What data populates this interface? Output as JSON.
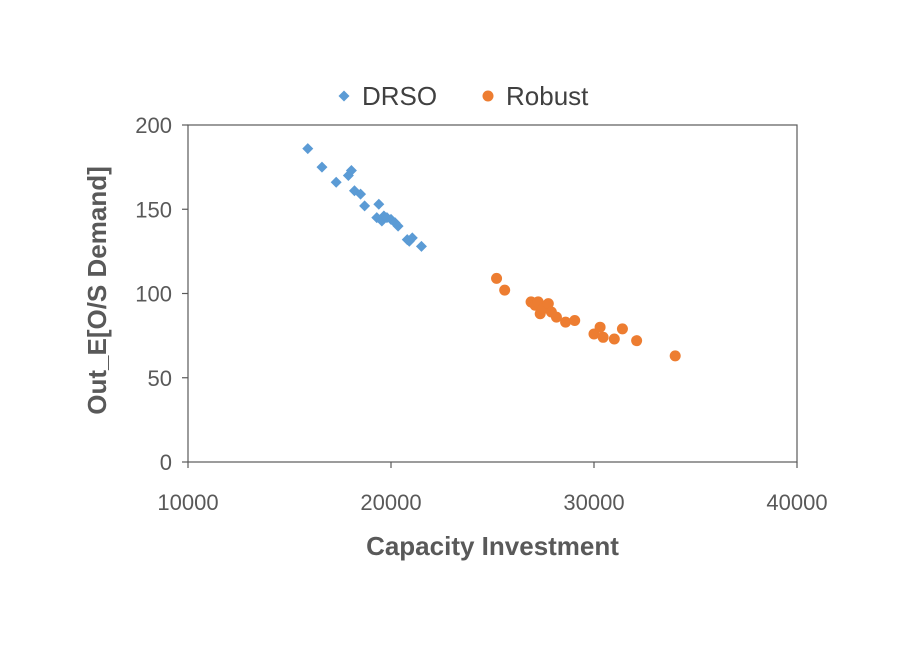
{
  "chart_data": {
    "type": "scatter",
    "title": "",
    "xlabel": "Capacity Investment",
    "ylabel": "Out_E[O/S Demand]",
    "xlim": [
      10000,
      40000
    ],
    "ylim": [
      0,
      200
    ],
    "x_ticks": [
      10000,
      20000,
      30000,
      40000
    ],
    "y_ticks": [
      0,
      50,
      100,
      150,
      200
    ],
    "grid": false,
    "legend_position": "top",
    "series": [
      {
        "name": "DRSO",
        "marker": "diamond",
        "color": "#5B9BD5",
        "points": [
          [
            15900,
            186
          ],
          [
            16600,
            175
          ],
          [
            17300,
            166
          ],
          [
            17900,
            170
          ],
          [
            18050,
            173
          ],
          [
            18200,
            161
          ],
          [
            18500,
            159
          ],
          [
            18700,
            152
          ],
          [
            19300,
            145
          ],
          [
            19400,
            153
          ],
          [
            19550,
            143
          ],
          [
            19650,
            146
          ],
          [
            19800,
            145
          ],
          [
            20000,
            144
          ],
          [
            20200,
            142
          ],
          [
            20350,
            140
          ],
          [
            20800,
            132
          ],
          [
            20900,
            131
          ],
          [
            21050,
            133
          ],
          [
            21500,
            128
          ]
        ]
      },
      {
        "name": "Robust",
        "marker": "circle",
        "color": "#ED7D31",
        "points": [
          [
            25200,
            109
          ],
          [
            25600,
            102
          ],
          [
            26900,
            95
          ],
          [
            27100,
            93
          ],
          [
            27250,
            95
          ],
          [
            27350,
            88
          ],
          [
            27500,
            91
          ],
          [
            27750,
            94
          ],
          [
            27900,
            89
          ],
          [
            28150,
            86
          ],
          [
            28600,
            83
          ],
          [
            29050,
            84
          ],
          [
            30000,
            76
          ],
          [
            30300,
            80
          ],
          [
            30450,
            74
          ],
          [
            31000,
            73
          ],
          [
            31400,
            79
          ],
          [
            32100,
            72
          ],
          [
            34000,
            63
          ]
        ]
      }
    ]
  }
}
